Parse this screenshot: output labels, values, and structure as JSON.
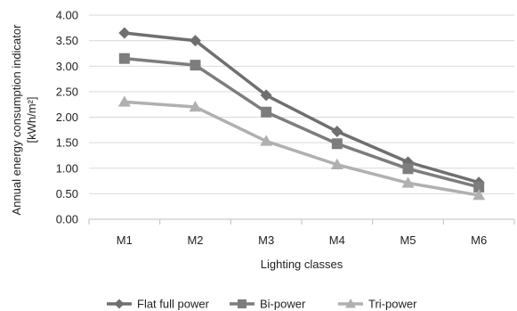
{
  "chart_data": {
    "type": "line",
    "categories": [
      "M1",
      "M2",
      "M3",
      "M4",
      "M5",
      "M6"
    ],
    "series": [
      {
        "name": "Flat full power",
        "values": [
          3.65,
          3.5,
          2.43,
          1.72,
          1.12,
          0.72
        ],
        "color": "#6f6f6f",
        "marker": "diamond"
      },
      {
        "name": "Bi-power",
        "values": [
          3.15,
          3.02,
          2.1,
          1.48,
          0.99,
          0.63
        ],
        "color": "#7d7d7d",
        "marker": "square"
      },
      {
        "name": "Tri-power",
        "values": [
          2.3,
          2.2,
          1.53,
          1.07,
          0.71,
          0.47
        ],
        "color": "#b0b0b0",
        "marker": "triangle"
      }
    ],
    "xlabel": "Lighting classes",
    "ylabel": "Annual energy consumption indicator",
    "ylabel_unit": "[kWh/m²]",
    "ylim": [
      0,
      4
    ],
    "yticks": [
      "0.00",
      "0.50",
      "1.00",
      "1.50",
      "2.00",
      "2.50",
      "3.00",
      "3.50",
      "4.00"
    ],
    "grid": "horizontal",
    "legend_position": "bottom"
  }
}
